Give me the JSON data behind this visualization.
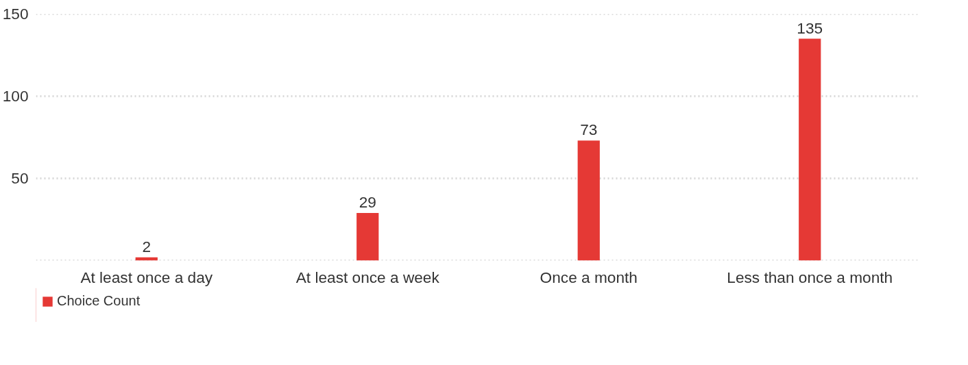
{
  "chart_data": {
    "type": "bar",
    "categories": [
      "At least once a day",
      "At least once a week",
      "Once a month",
      "Less than once a month"
    ],
    "series": [
      {
        "name": "Choice Count",
        "color": "#e53935",
        "values": [
          2,
          29,
          73,
          135
        ]
      }
    ],
    "ylim": [
      0,
      150
    ],
    "yticks": [
      {
        "value": 0,
        "label": null
      },
      50,
      100,
      150
    ],
    "grid": "y",
    "legend": "bottom left",
    "data_labels": true
  }
}
